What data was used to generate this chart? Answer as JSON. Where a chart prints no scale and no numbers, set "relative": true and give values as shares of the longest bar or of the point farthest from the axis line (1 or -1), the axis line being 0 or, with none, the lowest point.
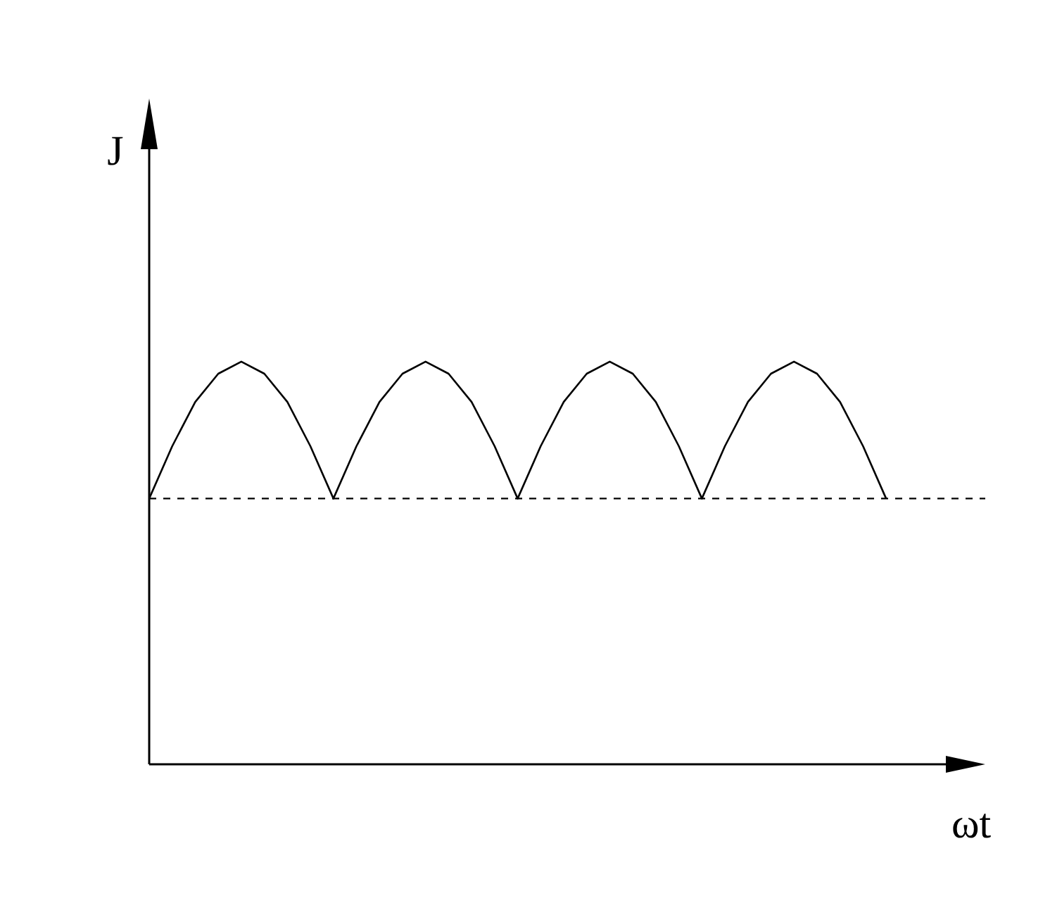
{
  "chart_data": {
    "type": "line",
    "relative": true,
    "xlabel": "ωt",
    "ylabel": "J",
    "marker": "none",
    "line_style": "solid",
    "categories": [
      null,
      null,
      null,
      null,
      null,
      null,
      null,
      null,
      null,
      null,
      null,
      null,
      null,
      null,
      null,
      null,
      null,
      null,
      null,
      null,
      null,
      null,
      null,
      null,
      null,
      null,
      null,
      null,
      null,
      null,
      null,
      null,
      null,
      null,
      null,
      null,
      null
    ],
    "series": [
      {
        "color": "#000000",
        "values": [
          0.66,
          0.79,
          0.9,
          0.97,
          1,
          0.97,
          0.9,
          0.79,
          0.66,
          0.79,
          0.9,
          0.97,
          1,
          0.97,
          0.9,
          0.79,
          0.66,
          0.79,
          0.9,
          0.97,
          1,
          0.97,
          0.9,
          0.79,
          0.66,
          0.79,
          0.9,
          0.97,
          1,
          0.97,
          0.9,
          0.79,
          0.66,
          null,
          null,
          null,
          null
        ]
      }
    ],
    "ref_lines": [
      {
        "axis": "y",
        "value": 0.66,
        "color": "#000000",
        "line_style": "dashed"
      }
    ]
  }
}
